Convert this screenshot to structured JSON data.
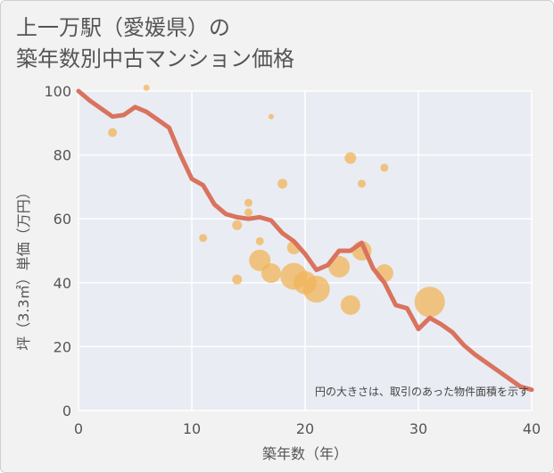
{
  "chart_data": {
    "type": "scatter",
    "title_line1": "上一万駅（愛媛県）の",
    "title_line2": "築年数別中古マンション価格",
    "xlabel": "築年数（年）",
    "ylabel": "坪（3.3㎡）単価（万円）",
    "xlim": [
      0,
      40
    ],
    "ylim": [
      0,
      100
    ],
    "xticks": [
      "0",
      "10",
      "20",
      "30",
      "40"
    ],
    "yticks": [
      "0",
      "20",
      "40",
      "60",
      "80",
      "100"
    ],
    "xtick_values": [
      0,
      10,
      20,
      30,
      40
    ],
    "ytick_values": [
      0,
      20,
      40,
      60,
      80,
      100
    ],
    "grid": true,
    "annotation": "円の大きさは、取引のあった物件面積を示す",
    "colors": {
      "line": "#d9735e",
      "bubble": "#f0b45a",
      "grid": "#ffffff",
      "plot_bg": "#e9ecf3"
    },
    "trend_line": {
      "x": [
        0,
        1,
        2,
        3,
        4,
        5,
        6,
        7,
        8,
        9,
        10,
        11,
        12,
        13,
        14,
        15,
        16,
        17,
        18,
        19,
        20,
        21,
        22,
        23,
        24,
        25,
        26,
        27,
        28,
        29,
        30,
        31,
        32,
        33,
        34,
        35,
        36,
        37,
        38,
        39,
        40
      ],
      "y": [
        100,
        97,
        94.5,
        92,
        92.5,
        95,
        93.5,
        91,
        88.5,
        80,
        72.5,
        70.5,
        64.5,
        61.5,
        60.5,
        60,
        60.5,
        59.5,
        55.5,
        53,
        49,
        44,
        45.5,
        50,
        50,
        52.5,
        44.5,
        40,
        33,
        32,
        25.5,
        29,
        27,
        24.5,
        20.5,
        17.5,
        15,
        12.5,
        10,
        7.5,
        6.5
      ]
    },
    "bubbles": [
      {
        "x": 3,
        "y": 87,
        "size": 5
      },
      {
        "x": 6,
        "y": 101,
        "size": 3.5
      },
      {
        "x": 11,
        "y": 54,
        "size": 4.5
      },
      {
        "x": 14,
        "y": 58,
        "size": 5.5
      },
      {
        "x": 14,
        "y": 41,
        "size": 5.5
      },
      {
        "x": 15,
        "y": 65,
        "size": 4.5
      },
      {
        "x": 15,
        "y": 62,
        "size": 4.5
      },
      {
        "x": 16,
        "y": 53,
        "size": 4.5
      },
      {
        "x": 16,
        "y": 47,
        "size": 12
      },
      {
        "x": 17,
        "y": 92,
        "size": 3
      },
      {
        "x": 17,
        "y": 43,
        "size": 11
      },
      {
        "x": 18,
        "y": 71,
        "size": 5.5
      },
      {
        "x": 19,
        "y": 51,
        "size": 7.5
      },
      {
        "x": 19,
        "y": 42,
        "size": 15
      },
      {
        "x": 20,
        "y": 40,
        "size": 13
      },
      {
        "x": 21,
        "y": 38,
        "size": 15
      },
      {
        "x": 23,
        "y": 45,
        "size": 12
      },
      {
        "x": 24,
        "y": 79,
        "size": 6.5
      },
      {
        "x": 24,
        "y": 33,
        "size": 11
      },
      {
        "x": 25,
        "y": 71,
        "size": 4.5
      },
      {
        "x": 25,
        "y": 50,
        "size": 11
      },
      {
        "x": 27,
        "y": 76,
        "size": 4.5
      },
      {
        "x": 27,
        "y": 43,
        "size": 10
      },
      {
        "x": 31,
        "y": 34,
        "size": 17
      }
    ]
  }
}
